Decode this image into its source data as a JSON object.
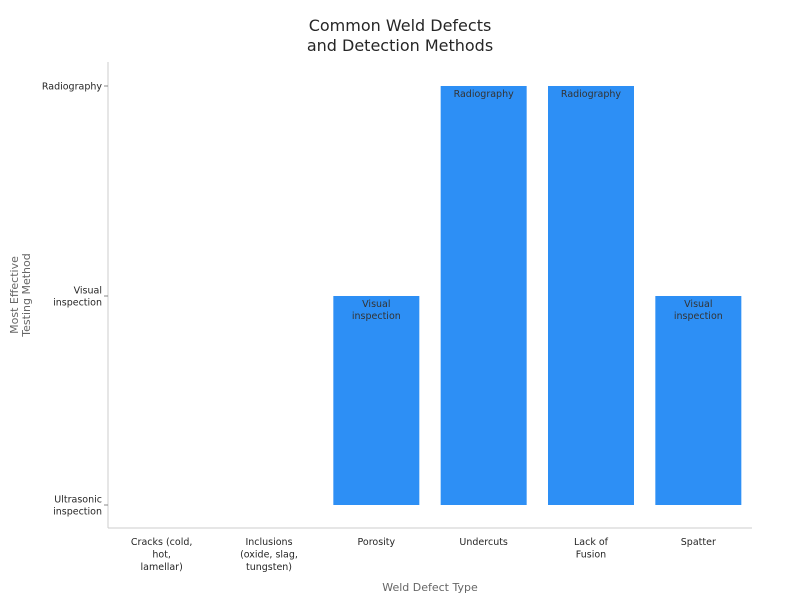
{
  "chart_data": {
    "type": "bar",
    "title": "Common Weld Defects and Detection Methods",
    "xlabel": "Weld Defect Type",
    "ylabel": "Most Effective Testing Method",
    "categories": [
      "Cracks (cold, hot, lamellar)",
      "Inclusions (oxide, slag, tungsten)",
      "Porosity",
      "Undercuts",
      "Lack of Fusion",
      "Spatter"
    ],
    "y_levels": [
      "Ultrasonic inspection",
      "Visual inspection",
      "Radiography"
    ],
    "values": [
      "Ultrasonic inspection",
      "Ultrasonic inspection",
      "Visual inspection",
      "Radiography",
      "Radiography",
      "Visual inspection"
    ],
    "bar_labels": [
      "",
      "",
      "Visual inspection",
      "Radiography",
      "Radiography",
      "Visual inspection"
    ],
    "bar_color": "#2d8ff5",
    "grid": false,
    "legend": "none"
  }
}
